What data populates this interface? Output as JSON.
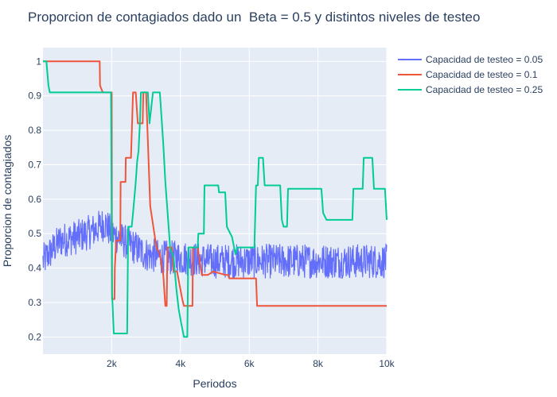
{
  "chart_data": {
    "type": "line",
    "title": "Proporcion de contagiados dado un  Beta = 0.5 y distintos niveles de testeo",
    "xlabel": "Periodos",
    "ylabel": "Proporcion de contagiados",
    "xlim": [
      0,
      10000
    ],
    "ylim": [
      0.15,
      1.04
    ],
    "x_ticks": [
      2000,
      4000,
      6000,
      8000,
      10000
    ],
    "x_tick_labels": [
      "2k",
      "4k",
      "6k",
      "8k",
      "10k"
    ],
    "y_ticks": [
      0.2,
      0.3,
      0.4,
      0.5,
      0.6,
      0.7,
      0.8,
      0.9,
      1
    ],
    "y_tick_labels": [
      "0.2",
      "0.3",
      "0.4",
      "0.5",
      "0.6",
      "0.7",
      "0.8",
      "0.9",
      "1"
    ],
    "grid": true,
    "legend_position": "top-right",
    "series": [
      {
        "name": "Capacidad de testeo = 0.05",
        "color": "#636efa",
        "noisy": true,
        "noise_amplitude": 0.05,
        "points": [
          [
            0,
            0.42
          ],
          [
            500,
            0.48
          ],
          [
            1000,
            0.49
          ],
          [
            1500,
            0.51
          ],
          [
            1800,
            0.53
          ],
          [
            2000,
            0.5
          ],
          [
            2500,
            0.47
          ],
          [
            3000,
            0.44
          ],
          [
            3500,
            0.43
          ],
          [
            4000,
            0.43
          ],
          [
            5000,
            0.42
          ],
          [
            6000,
            0.42
          ],
          [
            7000,
            0.42
          ],
          [
            8000,
            0.42
          ],
          [
            9000,
            0.42
          ],
          [
            10000,
            0.42
          ]
        ]
      },
      {
        "name": "Capacidad de testeo = 0.1",
        "color": "#ef553b",
        "noisy": false,
        "points": [
          [
            0,
            1.0
          ],
          [
            1650,
            1.0
          ],
          [
            1660,
            0.93
          ],
          [
            1700,
            0.92
          ],
          [
            1740,
            0.91
          ],
          [
            2000,
            0.91
          ],
          [
            2010,
            0.31
          ],
          [
            2080,
            0.31
          ],
          [
            2090,
            0.4
          ],
          [
            2130,
            0.48
          ],
          [
            2250,
            0.48
          ],
          [
            2260,
            0.65
          ],
          [
            2400,
            0.65
          ],
          [
            2410,
            0.72
          ],
          [
            2560,
            0.72
          ],
          [
            2620,
            0.91
          ],
          [
            2700,
            0.91
          ],
          [
            2760,
            0.82
          ],
          [
            2900,
            0.82
          ],
          [
            2920,
            0.91
          ],
          [
            3000,
            0.91
          ],
          [
            3120,
            0.58
          ],
          [
            3300,
            0.46
          ],
          [
            3400,
            0.44
          ],
          [
            3500,
            0.38
          ],
          [
            3560,
            0.29
          ],
          [
            3600,
            0.29
          ],
          [
            3620,
            0.46
          ],
          [
            3750,
            0.46
          ],
          [
            3800,
            0.39
          ],
          [
            3900,
            0.39
          ],
          [
            4050,
            0.31
          ],
          [
            4100,
            0.29
          ],
          [
            4350,
            0.29
          ],
          [
            4360,
            0.46
          ],
          [
            4500,
            0.46
          ],
          [
            4620,
            0.38
          ],
          [
            4800,
            0.38
          ],
          [
            4950,
            0.39
          ],
          [
            5300,
            0.38
          ],
          [
            5400,
            0.38
          ],
          [
            5420,
            0.37
          ],
          [
            6200,
            0.37
          ],
          [
            6230,
            0.29
          ],
          [
            10000,
            0.29
          ]
        ]
      },
      {
        "name": "Capacidad de testeo = 0.25",
        "color": "#00cc96",
        "noisy": false,
        "points": [
          [
            0,
            1.0
          ],
          [
            100,
            1.0
          ],
          [
            160,
            0.93
          ],
          [
            200,
            0.91
          ],
          [
            1980,
            0.91
          ],
          [
            2010,
            0.33
          ],
          [
            2060,
            0.21
          ],
          [
            2450,
            0.21
          ],
          [
            2480,
            0.52
          ],
          [
            2580,
            0.52
          ],
          [
            2620,
            0.56
          ],
          [
            2700,
            0.65
          ],
          [
            2740,
            0.71
          ],
          [
            2780,
            0.74
          ],
          [
            2820,
            0.82
          ],
          [
            2850,
            0.91
          ],
          [
            3050,
            0.91
          ],
          [
            3100,
            0.82
          ],
          [
            3200,
            0.91
          ],
          [
            3400,
            0.91
          ],
          [
            3460,
            0.82
          ],
          [
            3500,
            0.76
          ],
          [
            3560,
            0.65
          ],
          [
            3700,
            0.46
          ],
          [
            3800,
            0.43
          ],
          [
            3880,
            0.34
          ],
          [
            3950,
            0.28
          ],
          [
            4020,
            0.24
          ],
          [
            4080,
            0.21
          ],
          [
            4100,
            0.2
          ],
          [
            4200,
            0.2
          ],
          [
            4230,
            0.46
          ],
          [
            4500,
            0.46
          ],
          [
            4520,
            0.5
          ],
          [
            4680,
            0.5
          ],
          [
            4700,
            0.64
          ],
          [
            5100,
            0.64
          ],
          [
            5120,
            0.62
          ],
          [
            5300,
            0.62
          ],
          [
            5350,
            0.52
          ],
          [
            5500,
            0.49
          ],
          [
            5600,
            0.44
          ],
          [
            5650,
            0.46
          ],
          [
            6150,
            0.46
          ],
          [
            6200,
            0.64
          ],
          [
            6250,
            0.64
          ],
          [
            6280,
            0.72
          ],
          [
            6400,
            0.72
          ],
          [
            6450,
            0.64
          ],
          [
            6900,
            0.64
          ],
          [
            6950,
            0.54
          ],
          [
            7000,
            0.52
          ],
          [
            7100,
            0.52
          ],
          [
            7130,
            0.63
          ],
          [
            8100,
            0.63
          ],
          [
            8150,
            0.56
          ],
          [
            8250,
            0.54
          ],
          [
            9000,
            0.54
          ],
          [
            9030,
            0.63
          ],
          [
            9300,
            0.63
          ],
          [
            9330,
            0.72
          ],
          [
            9580,
            0.72
          ],
          [
            9630,
            0.63
          ],
          [
            9950,
            0.63
          ],
          [
            10000,
            0.54
          ]
        ]
      }
    ]
  }
}
